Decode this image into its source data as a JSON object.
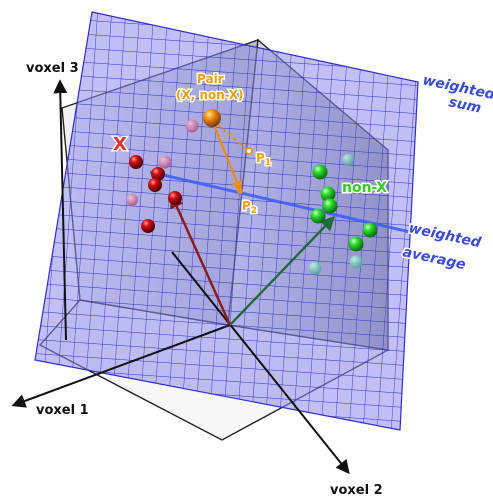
{
  "axes": {
    "x": "voxel 1",
    "y": "voxel 2",
    "z": "voxel 3"
  },
  "planes": {
    "sum": [
      "weighted",
      "sum"
    ],
    "average": [
      "weighted",
      "average"
    ]
  },
  "groups": {
    "x": "X",
    "nonx": "non-X"
  },
  "pair": {
    "line1": "Pair",
    "line2": "(X, non-X)"
  },
  "points": {
    "p1": {
      "letter": "P",
      "sub": "1"
    },
    "p2": {
      "letter": "P",
      "sub": "2"
    }
  },
  "colors": {
    "grid_plane": "#8888ee",
    "grid_line": "#3a3acc",
    "x_sphere": "#b30000",
    "nonx_sphere": "#22cc22",
    "pair_sphere": "#f08c00",
    "plane_label": "#3a4bd6",
    "x_vector": "#8a1a1a",
    "nonx_vector": "#1e6b3a"
  }
}
